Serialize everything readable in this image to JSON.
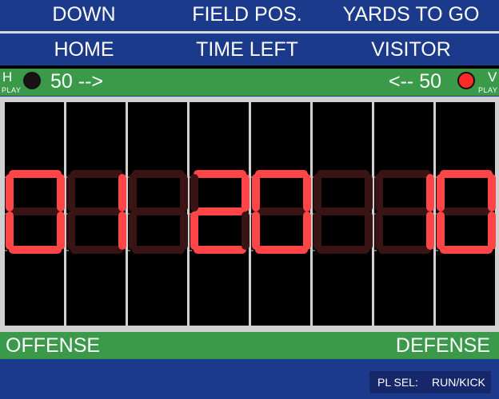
{
  "header": {
    "row1": [
      "DOWN",
      "FIELD POS.",
      "YARDS TO GO"
    ],
    "row2": [
      "HOME",
      "TIME LEFT",
      "VISITOR"
    ]
  },
  "possession": {
    "home": {
      "letter": "H",
      "sub": "PLAY",
      "yard_text": "50 -->",
      "lamp_on": false
    },
    "visitor": {
      "letter": "V",
      "sub": "PLAY",
      "yard_text": "<-- 50",
      "lamp_on": true
    }
  },
  "display": {
    "digits": [
      "0",
      "1",
      "",
      "2",
      "0",
      "",
      "1",
      "0"
    ]
  },
  "labels": {
    "offense": "OFFENSE",
    "defense": "DEFENSE"
  },
  "play_select": {
    "label": "PL SEL:",
    "value": "RUN/KICK"
  },
  "colors": {
    "header_blue": "#1c3a8c",
    "bar_green": "#3a9a4a",
    "segment_on": "#ff4545",
    "segment_off": "#3a1414",
    "lamp_on": "#ff2a2a",
    "lamp_off": "#1a1212"
  }
}
